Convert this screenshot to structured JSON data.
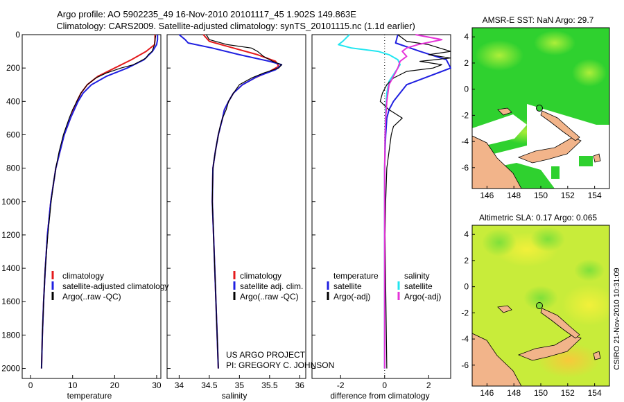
{
  "header": {
    "line1": "Argo profile: AO 5902235_49 16-Nov-2010 20101117_45 1.902S 149.863E",
    "line2": "Climatology: CARS2009. Satellite-adjusted climatology: synTS_20101115.nc (1.1d earlier)"
  },
  "side_text": "CSIRO 21-Nov-2010 10:31:09",
  "credits": {
    "line1": "US ARGO PROJECT",
    "line2": "PI: GREGORY C. JOHNSON"
  },
  "colors": {
    "red": "#e41a1c",
    "blue": "#1f1fe0",
    "black": "#000000",
    "cyan": "#22e6f0",
    "magenta": "#e633d9"
  },
  "chart_data": [
    {
      "type": "line",
      "xlabel": "temperature",
      "xlim": [
        -2,
        31
      ],
      "ylim": [
        0,
        2060
      ],
      "ytick_every": 200,
      "xticks": [
        0,
        10,
        20,
        30
      ],
      "legend": {
        "placement": "lower-right",
        "entries": [
          "climatology",
          "satellite-adjusted climatology",
          "Argo(..raw -QC)"
        ]
      },
      "series": [
        {
          "name": "climatology",
          "color": "red",
          "width": 2,
          "depth": [
            0,
            30,
            60,
            100,
            150,
            200,
            250,
            300,
            350,
            400,
            500,
            600,
            700,
            800,
            1000,
            1200,
            1400,
            1600,
            1800,
            2000
          ],
          "values": [
            29.6,
            29.6,
            29.5,
            27.5,
            24,
            20,
            16,
            13.5,
            12,
            11,
            9.5,
            8,
            7,
            6,
            4.8,
            4,
            3.5,
            3.1,
            2.8,
            2.6
          ]
        },
        {
          "name": "satellite-adjusted climatology",
          "color": "blue",
          "width": 2,
          "depth": [
            0,
            30,
            60,
            100,
            150,
            200,
            250,
            300,
            350,
            400,
            500,
            600,
            700,
            800,
            1000,
            1200,
            1400,
            1600,
            1800,
            2000
          ],
          "values": [
            30.2,
            30.2,
            30,
            29,
            27,
            23,
            18,
            14.5,
            12.5,
            11.3,
            9.5,
            8,
            7,
            6,
            4.8,
            4,
            3.5,
            3.1,
            2.8,
            2.6
          ]
        },
        {
          "name": "Argo(..raw -QC)",
          "color": "black",
          "width": 1.2,
          "depth": [
            5,
            20,
            40,
            60,
            80,
            100,
            120,
            140,
            160,
            180,
            200,
            230,
            260,
            300,
            350,
            400,
            450,
            500,
            550,
            600,
            650,
            700,
            800,
            900,
            1000,
            1200,
            1400,
            1600,
            1800,
            2000
          ],
          "values": [
            29.8,
            29.7,
            29.6,
            29.5,
            29.2,
            28.9,
            28,
            27.5,
            26,
            24.5,
            21.5,
            18,
            15.5,
            13.5,
            12,
            11,
            10,
            9.2,
            8.5,
            7.8,
            7.3,
            6.8,
            6,
            5.4,
            4.9,
            4.1,
            3.5,
            3.1,
            2.8,
            2.6
          ]
        }
      ]
    },
    {
      "type": "line",
      "xlabel": "salinity",
      "xlim": [
        33.8,
        36.1
      ],
      "ylim": [
        0,
        2060
      ],
      "ytick_every": 200,
      "xticks": [
        34,
        34.5,
        35,
        35.5,
        36
      ],
      "legend": {
        "placement": "lower-right",
        "entries": [
          "climatology",
          "satellite adj. clim.",
          "Argo(..raw -QC)"
        ]
      },
      "series": [
        {
          "name": "climatology",
          "color": "red",
          "width": 2,
          "depth": [
            0,
            40,
            80,
            120,
            160,
            190,
            220,
            260,
            300,
            350,
            400,
            450,
            500,
            600,
            700,
            800,
            1000,
            1200,
            1500,
            2000
          ],
          "values": [
            34.4,
            34.5,
            34.9,
            35.3,
            35.6,
            35.65,
            35.5,
            35.25,
            35.05,
            34.9,
            34.82,
            34.75,
            34.72,
            34.65,
            34.6,
            34.56,
            34.55,
            34.57,
            34.6,
            34.65
          ]
        },
        {
          "name": "satellite adj. clim.",
          "color": "blue",
          "width": 2,
          "depth": [
            0,
            30,
            50,
            80,
            120,
            160,
            180,
            210,
            250,
            300,
            350,
            400,
            450,
            500,
            600,
            700,
            800,
            1000,
            1200,
            1500,
            2000
          ],
          "values": [
            34.0,
            34.1,
            34.15,
            34.55,
            35.0,
            35.5,
            35.7,
            35.6,
            35.3,
            35.05,
            34.9,
            34.82,
            34.75,
            34.72,
            34.65,
            34.6,
            34.56,
            34.55,
            34.57,
            34.6,
            34.65
          ]
        },
        {
          "name": "Argo(..raw -QC)",
          "color": "black",
          "width": 1.2,
          "depth": [
            0,
            30,
            60,
            80,
            100,
            130,
            160,
            180,
            200,
            230,
            260,
            300,
            350,
            400,
            450,
            500,
            550,
            600,
            700,
            800,
            1000,
            1200,
            1500,
            2000
          ],
          "values": [
            34.45,
            34.5,
            34.8,
            35.2,
            35.3,
            35.4,
            35.55,
            35.7,
            35.65,
            35.4,
            35.2,
            35.0,
            34.9,
            34.82,
            34.78,
            34.72,
            34.68,
            34.65,
            34.6,
            34.56,
            34.55,
            34.57,
            34.6,
            34.65
          ]
        }
      ]
    },
    {
      "type": "line",
      "xlabel": "difference from climatology",
      "xlim": [
        -3.3,
        3
      ],
      "ylim": [
        0,
        2060
      ],
      "ytick_every": 200,
      "xticks": [
        -2,
        0,
        2
      ],
      "zero_line": true,
      "legend": {
        "placement": "lower-right",
        "entries": [
          "temperature",
          "salinity",
          "satellite",
          "satellite",
          "Argo(-adj)",
          "Argo(-adj)"
        ]
      },
      "series": [
        {
          "name": "temperature satellite",
          "color": "blue",
          "width": 2,
          "depth": [
            0,
            50,
            100,
            150,
            200,
            250,
            300,
            350,
            400,
            450,
            500,
            600,
            700,
            800,
            1000,
            1500,
            2000
          ],
          "values": [
            0.6,
            0.5,
            1.6,
            2.8,
            3.0,
            2.0,
            1.0,
            0.7,
            0.4,
            0.2,
            0.1,
            0.05,
            0.02,
            0,
            0,
            0,
            0
          ]
        },
        {
          "name": "salinity satellite",
          "color": "cyan",
          "width": 2,
          "depth": [
            0,
            40,
            60,
            80,
            100,
            120,
            150,
            180,
            220,
            280,
            350,
            450,
            600,
            800,
            1000,
            1500,
            2000
          ],
          "values": [
            -1.6,
            -1.9,
            -2.1,
            -1.5,
            -0.3,
            0.2,
            0.6,
            0.7,
            0.5,
            0.2,
            0.1,
            0.05,
            0.02,
            0,
            0,
            0,
            0
          ]
        },
        {
          "name": "temperature Argo(-adj)",
          "color": "black",
          "width": 1.2,
          "depth": [
            0,
            40,
            60,
            80,
            100,
            120,
            140,
            160,
            180,
            200,
            220,
            260,
            300,
            350,
            400,
            450,
            500,
            550,
            600,
            700,
            800,
            1000,
            1200,
            1500,
            2000
          ],
          "values": [
            0.6,
            1.0,
            2.0,
            2.5,
            3.0,
            2.0,
            3.0,
            1.6,
            2.6,
            2.2,
            1.0,
            0.4,
            0.1,
            -0.1,
            -0.2,
            0.2,
            0.8,
            0.4,
            0.3,
            0.2,
            0.1,
            0.05,
            0.02,
            0.05,
            0.1
          ]
        },
        {
          "name": "salinity Argo(-adj)",
          "color": "magenta",
          "width": 2,
          "depth": [
            0,
            30,
            60,
            80,
            100,
            130,
            160,
            200,
            250,
            300,
            400,
            500,
            600,
            800,
            1000,
            1500,
            2000
          ],
          "values": [
            1.4,
            2.6,
            1.5,
            1.0,
            0.8,
            1.0,
            0.7,
            0.6,
            0.4,
            0.2,
            0.1,
            0.05,
            0.02,
            0,
            0,
            0,
            0
          ]
        }
      ]
    }
  ],
  "maps": [
    {
      "title": "AMSR-E SST: NaN Argo: 29.7",
      "xticks": [
        146,
        148,
        150,
        152,
        154
      ],
      "yticks": [
        4,
        2,
        0,
        -2,
        -4,
        -6
      ],
      "float_position": {
        "lon": 149.863,
        "lat": -1.902
      }
    },
    {
      "title": "Altimetric SLA: 0.17 Argo: 0.065",
      "xticks": [
        146,
        148,
        150,
        152,
        154
      ],
      "yticks": [
        4,
        2,
        0,
        -2,
        -4,
        -6
      ],
      "float_position": {
        "lon": 149.863,
        "lat": -1.902
      }
    }
  ]
}
